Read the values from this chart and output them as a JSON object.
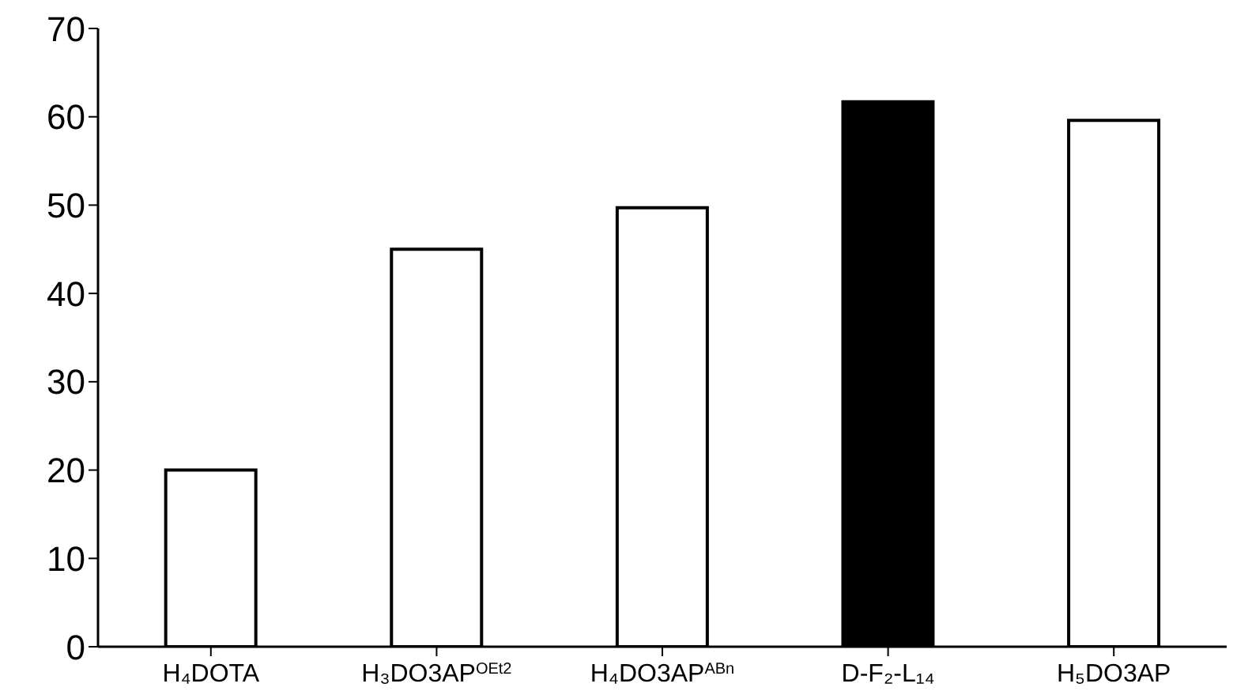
{
  "chart_data": {
    "type": "bar",
    "categories": [
      "H₄DOTA",
      "H₃DO3AP$^{OEt2}$",
      "H₄DO3AP$^{ABn}$",
      "D-F₂-L₁₄",
      "H₅DO3AP"
    ],
    "values": [
      20,
      45,
      49.7,
      61.7,
      59.6
    ],
    "colors": [
      "#ffffff",
      "#ffffff",
      "#ffffff",
      "#000000",
      "#ffffff"
    ],
    "ylim": [
      0,
      70
    ],
    "yticks": [
      0,
      10,
      20,
      30,
      40,
      50,
      60,
      70
    ],
    "grid": false,
    "legend": false
  }
}
